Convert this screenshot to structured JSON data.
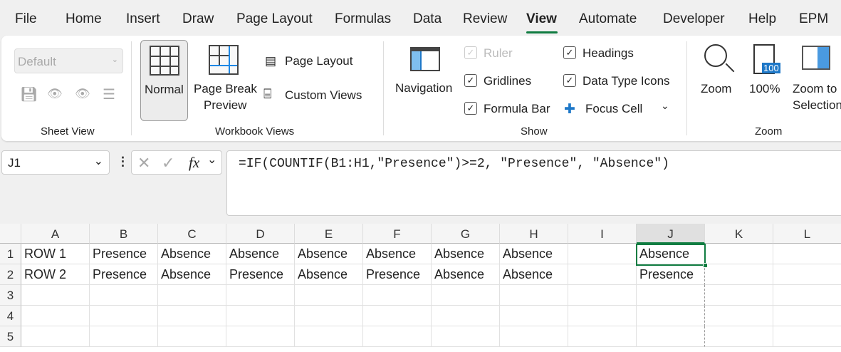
{
  "menu": [
    "File",
    "Home",
    "Insert",
    "Draw",
    "Page Layout",
    "Formulas",
    "Data",
    "Review",
    "View",
    "Automate",
    "Developer",
    "Help",
    "EPM"
  ],
  "active_tab": "View",
  "ribbon": {
    "sheet_view": {
      "dropdown": "Default",
      "label": "Sheet View"
    },
    "workbook_views": {
      "normal": "Normal",
      "page_break": "Page Break",
      "preview": "Preview",
      "page_layout": "Page Layout",
      "custom_views": "Custom Views",
      "label": "Workbook Views"
    },
    "show": {
      "navigation": "Navigation",
      "ruler": "Ruler",
      "gridlines": "Gridlines",
      "formula_bar": "Formula Bar",
      "headings": "Headings",
      "data_type_icons": "Data Type Icons",
      "focus_cell": "Focus Cell",
      "label": "Show"
    },
    "zoom": {
      "zoom": "Zoom",
      "hundred": "100%",
      "icon_text": "100",
      "zoom_to": "Zoom to",
      "selection": "Selection",
      "label": "Zoom"
    }
  },
  "formula_bar": {
    "name_box": "J1",
    "fx": "fx",
    "formula": "=IF(COUNTIF(B1:H1,\"Presence\")>=2, \"Presence\", \"Absence\")"
  },
  "columns": [
    "A",
    "B",
    "C",
    "D",
    "E",
    "F",
    "G",
    "H",
    "I",
    "J",
    "K",
    "L"
  ],
  "rows": [
    "1",
    "2",
    "3",
    "4",
    "5"
  ],
  "cells": [
    [
      "ROW 1",
      "Presence",
      "Absence",
      "Absence",
      "Absence",
      "Absence",
      "Absence",
      "Absence",
      "",
      "Absence"
    ],
    [
      "ROW 2",
      "Presence",
      "Absence",
      "Presence",
      "Absence",
      "Presence",
      "Absence",
      "Absence",
      "",
      "Presence"
    ]
  ],
  "selected_cell": "J1",
  "accent": "#107c41"
}
